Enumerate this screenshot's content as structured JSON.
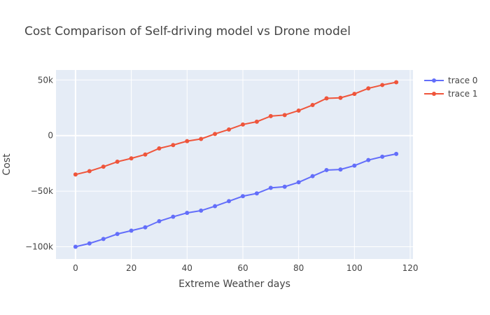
{
  "chart_data": {
    "type": "line",
    "title": "Cost Comparison of Self-driving model vs Drone model",
    "xlabel": "Extreme Weather days",
    "ylabel": "Cost",
    "xlim": [
      -7,
      121
    ],
    "ylim": [
      -111000,
      59000
    ],
    "xticks": [
      0,
      20,
      40,
      60,
      80,
      100,
      120
    ],
    "xtick_labels": [
      "0",
      "20",
      "40",
      "60",
      "80",
      "100",
      "120"
    ],
    "yticks": [
      -100000,
      -50000,
      0,
      50000
    ],
    "ytick_labels": [
      "−100k",
      "−50k",
      "0",
      "50k"
    ],
    "grid": true,
    "legend_position": "top-right",
    "x": [
      0,
      5,
      10,
      15,
      20,
      25,
      30,
      35,
      40,
      45,
      50,
      55,
      60,
      65,
      70,
      75,
      80,
      85,
      90,
      95,
      100,
      105,
      110,
      115
    ],
    "series": [
      {
        "name": "trace 0",
        "color": "#636efa",
        "values": [
          -100000,
          -97000,
          -93000,
          -88500,
          -85500,
          -82500,
          -77000,
          -73000,
          -69500,
          -67500,
          -63500,
          -59000,
          -54500,
          -52000,
          -47000,
          -46000,
          -42000,
          -36500,
          -31000,
          -30500,
          -27000,
          -22000,
          -19000,
          -16500
        ]
      },
      {
        "name": "trace 1",
        "color": "#ef553b",
        "values": [
          -35000,
          -32000,
          -28000,
          -23500,
          -20500,
          -17000,
          -11500,
          -8500,
          -5000,
          -3000,
          1500,
          5500,
          10000,
          12500,
          17500,
          18500,
          22500,
          27500,
          33500,
          34000,
          37500,
          42500,
          45500,
          48000
        ]
      }
    ],
    "plot_bg": "#e5ecf6",
    "grid_color": "#ffffff"
  }
}
